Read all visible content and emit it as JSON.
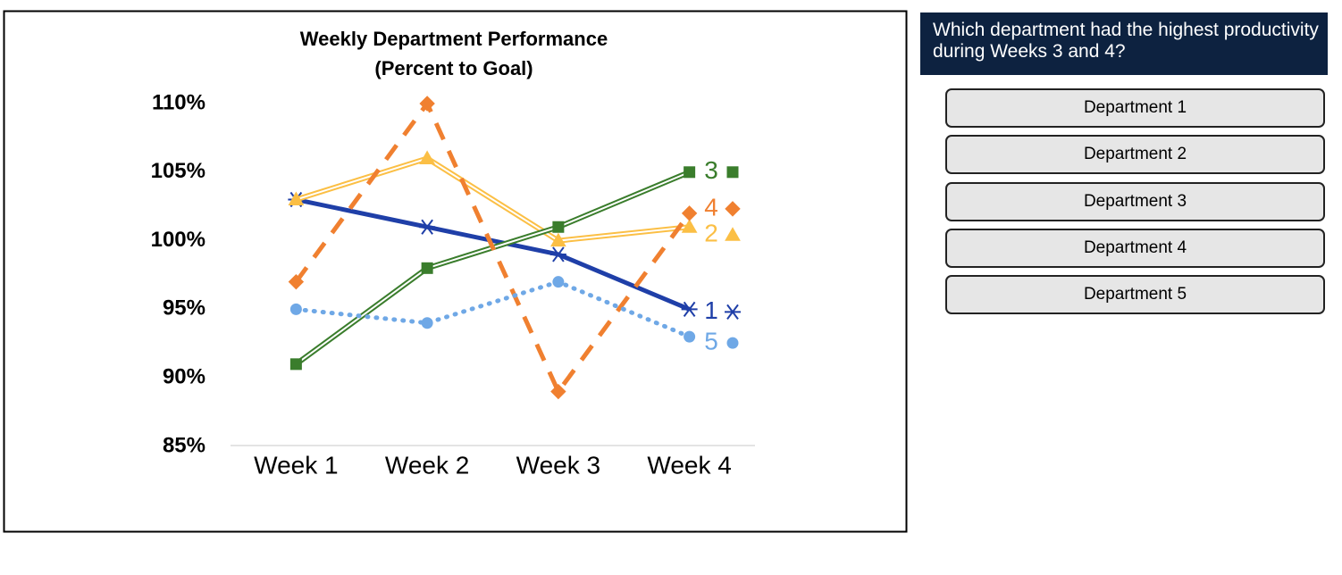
{
  "chart_data": {
    "type": "line",
    "title": "Weekly Department Performance",
    "subtitle": "(Percent to Goal)",
    "categories": [
      "Week 1",
      "Week 2",
      "Week 3",
      "Week 4"
    ],
    "ylim": [
      85,
      110
    ],
    "yticks": [
      {
        "value": 85,
        "label": "85%"
      },
      {
        "value": 90,
        "label": "90%"
      },
      {
        "value": 95,
        "label": "95%"
      },
      {
        "value": 100,
        "label": "100%"
      },
      {
        "value": 105,
        "label": "105%"
      },
      {
        "value": 110,
        "label": "110%"
      }
    ],
    "grid": false,
    "series": [
      {
        "name": "1",
        "color": "#1f3fa8",
        "line_style": "solid",
        "marker": "asterisk",
        "values": [
          103,
          101,
          99,
          95
        ]
      },
      {
        "name": "2",
        "color": "#fbbf45",
        "line_style": "double",
        "marker": "triangle",
        "values": [
          103,
          106,
          100,
          101
        ]
      },
      {
        "name": "3",
        "color": "#3a7d2c",
        "line_style": "double",
        "marker": "square",
        "values": [
          91,
          98,
          101,
          105
        ]
      },
      {
        "name": "4",
        "color": "#f08030",
        "line_style": "dashed",
        "marker": "diamond",
        "values": [
          97,
          110,
          89,
          102
        ]
      },
      {
        "name": "5",
        "color": "#6fa8e6",
        "line_style": "dotted",
        "marker": "circle",
        "values": [
          95,
          94,
          97,
          93
        ]
      }
    ]
  },
  "question": "Which department had the highest productivity during Weeks 3 and 4?",
  "options": [
    "Department 1",
    "Department 2",
    "Department 3",
    "Department 4",
    "Department 5"
  ]
}
